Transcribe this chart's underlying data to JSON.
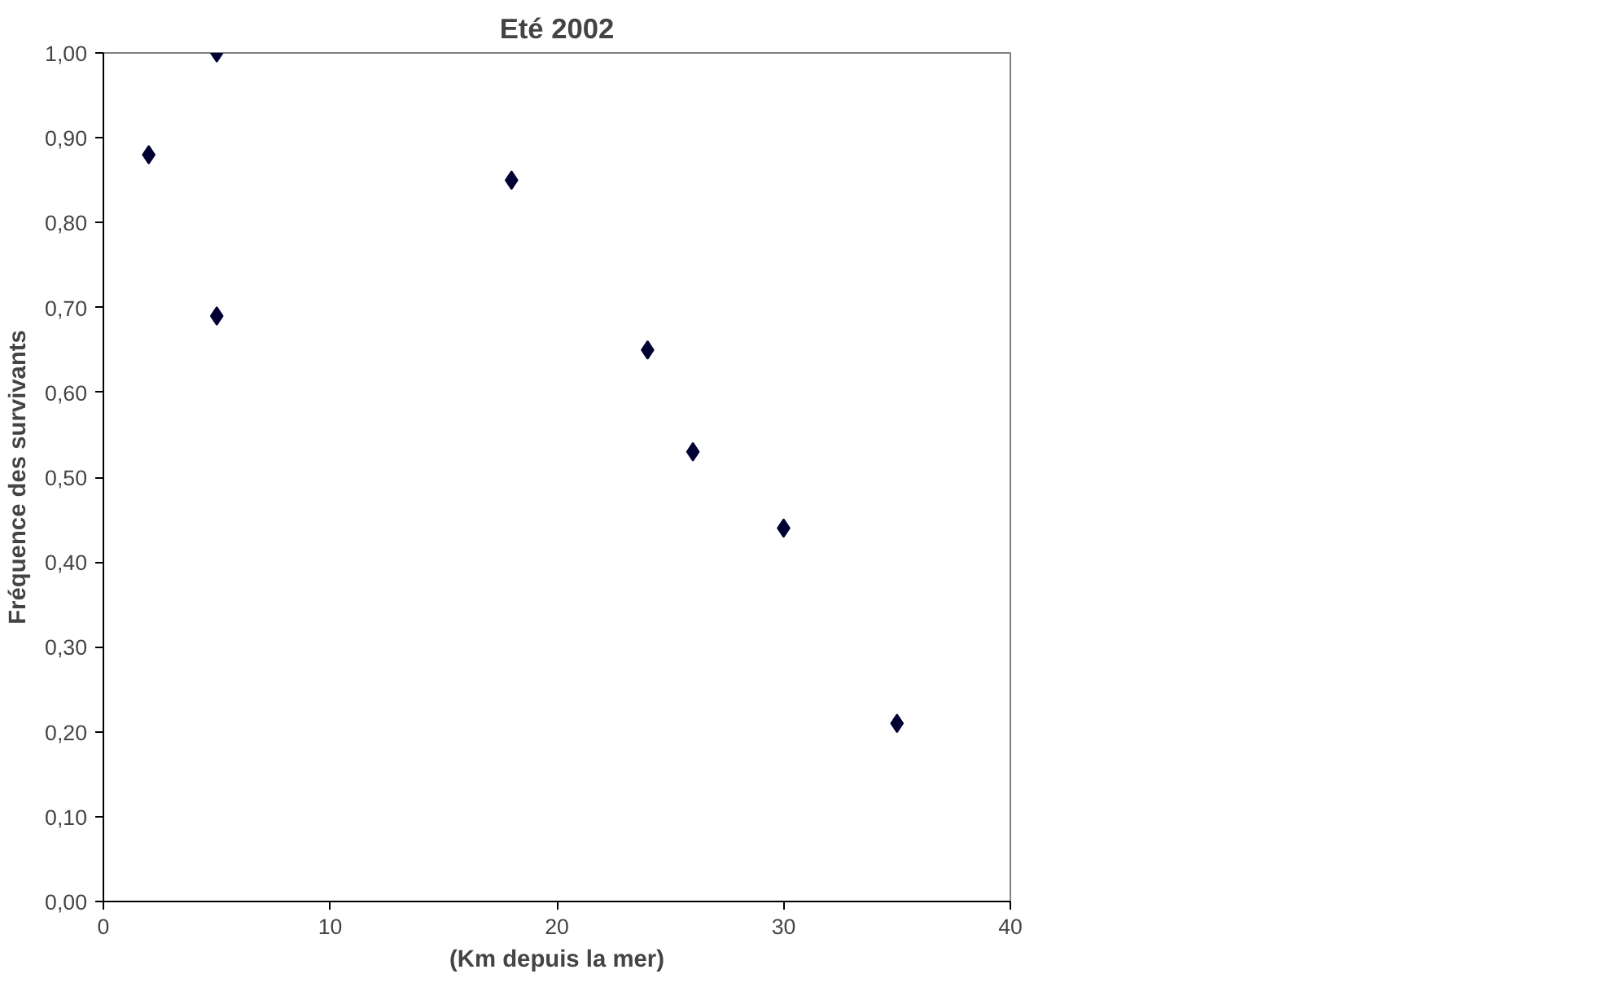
{
  "chart_data": {
    "type": "scatter",
    "title": "Eté 2002",
    "xlabel": "(Km depuis la mer)",
    "ylabel": "Fréquence des survivants",
    "x": [
      2,
      5,
      5,
      18,
      24,
      26,
      30,
      35
    ],
    "series": [
      {
        "color": "#000033",
        "values": [
          0.88,
          1.0,
          0.69,
          0.85,
          0.65,
          0.53,
          0.44,
          0.21
        ]
      }
    ],
    "xlim": [
      0,
      40
    ],
    "xticks": [
      0,
      10,
      20,
      30,
      40
    ],
    "ylim": [
      0,
      1
    ],
    "yticks": [
      {
        "value": 0,
        "label": "0,00"
      },
      {
        "value": 0.1,
        "label": "0,10"
      },
      {
        "value": 0.2,
        "label": "0,20"
      },
      {
        "value": 0.3,
        "label": "0,30"
      },
      {
        "value": 0.4,
        "label": "0,40"
      },
      {
        "value": 0.5,
        "label": "0,50"
      },
      {
        "value": 0.6,
        "label": "0,60"
      },
      {
        "value": 0.7,
        "label": "0,70"
      },
      {
        "value": 0.8,
        "label": "0,80"
      },
      {
        "value": 0.9,
        "label": "0,90"
      },
      {
        "value": 1.0,
        "label": "1,00"
      }
    ],
    "marker": "diamond",
    "grid": false
  }
}
